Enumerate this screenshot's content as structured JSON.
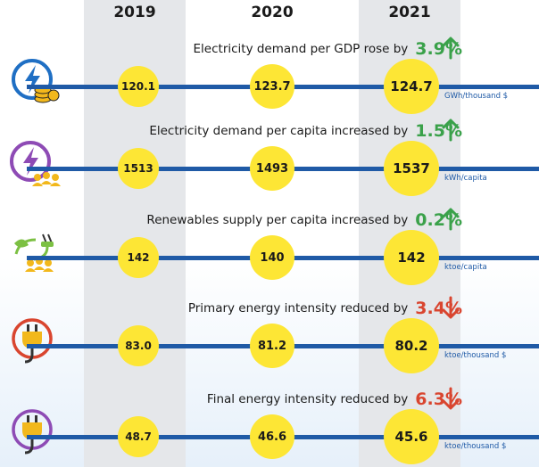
{
  "years": [
    "2019",
    "2020",
    "2021"
  ],
  "chart_data": {
    "type": "table",
    "categories": [
      "2019",
      "2020",
      "2021"
    ],
    "series": [
      {
        "label": "Electricity demand per GDP rose by",
        "change": "3.9%",
        "direction": "up",
        "unit": "GWh/thousand $",
        "icon": "electricity-coins-icon",
        "values": [
          "120.1",
          "123.7",
          "124.7"
        ]
      },
      {
        "label": "Electricity demand per capita increased by",
        "change": "1.5%",
        "direction": "up",
        "unit": "kWh/capita",
        "icon": "electricity-people-icon",
        "values": [
          "1513",
          "1493",
          "1537"
        ]
      },
      {
        "label": "Renewables supply per capita increased  by",
        "change": "0.2%",
        "direction": "up",
        "unit": "ktoe/capita",
        "icon": "renewable-people-icon",
        "values": [
          "142",
          "140",
          "142"
        ]
      },
      {
        "label": "Primary energy intensity reduced by",
        "change": "3.4%",
        "direction": "down",
        "unit": "ktoe/thousand $",
        "icon": "plug-icon",
        "values": [
          "83.0",
          "81.2",
          "80.2"
        ]
      },
      {
        "label": "Final energy intensity reduced by",
        "change": "6.3%",
        "direction": "down",
        "unit": "ktoe/thousand $",
        "icon": "plug-icon",
        "values": [
          "48.7",
          "46.6",
          "45.6"
        ]
      }
    ]
  },
  "colors": {
    "line": "#1f5aa6",
    "bubble": "#fde635",
    "up": "#3aa14a",
    "down": "#d9452f",
    "band": "#e5e7ea"
  }
}
